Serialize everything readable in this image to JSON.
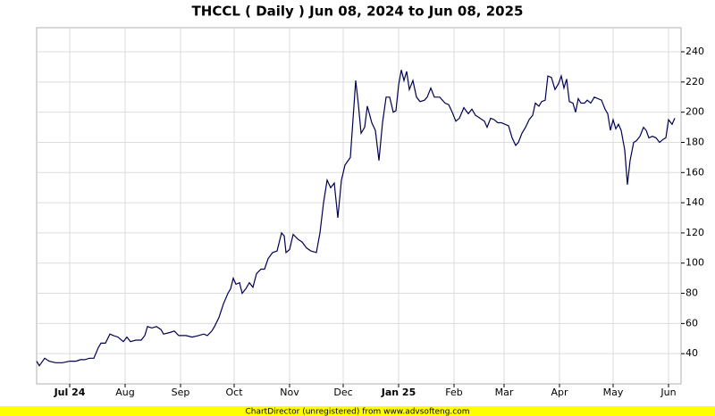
{
  "chart_data": {
    "type": "line",
    "title": "THCCL ( Daily ) Jun 08, 2024 to Jun 08, 2025",
    "footer": "ChartDirector (unregistered) from www.advsofteng.com",
    "x": [
      4.5,
      6,
      9,
      11.5,
      15,
      19,
      23,
      26.5,
      29,
      31.5,
      34,
      36.5,
      39,
      40.5,
      43,
      45.5,
      47.5,
      50,
      53,
      55,
      57,
      60,
      63,
      65,
      66.5,
      69,
      71.5,
      74,
      75.5,
      79,
      81.5,
      84,
      88,
      91.5,
      95,
      98,
      100,
      102.5,
      104,
      106.5,
      109,
      111.5,
      113,
      114.5,
      116,
      118,
      119.5,
      121.5,
      123.5,
      125.5,
      127.5,
      130,
      132,
      134,
      136.5,
      139,
      141.5,
      143,
      144,
      146,
      148,
      150.5,
      153,
      155.5,
      158,
      161,
      163,
      165,
      167,
      169,
      171,
      173,
      175,
      177,
      180,
      183,
      184.5,
      186,
      188,
      189.5,
      192,
      194,
      196,
      198,
      200,
      202,
      204,
      205.5,
      207,
      208.5,
      210,
      211.5,
      213,
      215,
      217,
      219,
      221.5,
      223,
      225,
      227,
      230,
      233,
      235,
      237,
      239,
      241,
      243.5,
      246,
      248,
      250,
      252.5,
      255,
      256.5,
      258.5,
      260.5,
      262.5,
      264.5,
      266.5,
      268.5,
      270.5,
      272.5,
      274,
      276,
      278,
      280,
      282,
      283.5,
      285.5,
      287,
      289,
      290.5,
      292.5,
      294.5,
      296.5,
      298,
      299.5,
      301,
      302.5,
      304.5,
      306,
      307.5,
      309,
      311,
      312.5,
      314.5,
      316.5,
      318.5,
      320.5,
      322.5,
      324,
      325.5,
      327,
      328.5,
      330,
      331.5,
      333.5,
      335,
      336.5,
      338.5,
      340,
      342,
      344,
      345.5,
      347,
      349,
      351,
      353,
      355,
      356.5,
      358,
      360,
      361.5
    ],
    "series": [
      {
        "color": "#000050",
        "values": [
          35,
          32,
          37,
          35,
          34,
          34,
          35,
          35,
          36,
          36,
          37,
          37,
          44,
          47,
          47,
          53,
          52,
          51,
          48,
          51,
          48,
          49,
          49,
          52,
          58,
          57,
          58,
          56,
          53,
          54,
          55,
          52,
          52,
          51,
          52,
          53,
          52,
          55,
          58,
          64,
          73,
          80,
          83,
          90,
          86,
          87,
          80,
          83,
          87,
          84,
          93,
          96,
          96,
          103,
          107,
          108,
          120,
          118,
          107,
          109,
          119,
          116,
          114,
          110,
          108,
          107,
          120,
          140,
          155,
          150,
          153,
          130,
          155,
          165,
          170,
          221,
          205,
          186,
          190,
          204,
          193,
          188,
          168,
          193,
          210,
          210,
          200,
          201,
          218,
          228,
          221,
          227,
          215,
          221,
          210,
          207,
          208,
          210,
          216,
          210,
          210,
          206,
          205,
          200,
          194,
          196,
          203,
          199,
          202,
          198,
          196,
          194,
          190,
          196,
          195,
          193,
          193,
          192,
          191,
          183,
          178,
          180,
          186,
          190,
          195,
          198,
          206,
          204,
          207,
          208,
          224,
          223,
          215,
          219,
          224,
          216,
          222,
          207,
          206,
          200,
          209,
          206,
          206,
          208,
          206,
          210,
          209,
          208,
          202,
          199,
          188,
          195,
          189,
          192,
          188,
          175,
          152,
          168,
          180,
          181,
          184,
          190,
          188,
          183,
          184,
          183,
          180,
          182,
          183,
          195,
          192,
          196
        ]
      }
    ],
    "xlim": [
      4.5,
      365
    ],
    "xticks": [
      {
        "value": 23,
        "label": "Jul 24",
        "bold": true
      },
      {
        "value": 54,
        "label": "Aug"
      },
      {
        "value": 85,
        "label": "Sep"
      },
      {
        "value": 115,
        "label": "Oct"
      },
      {
        "value": 146,
        "label": "Nov"
      },
      {
        "value": 176,
        "label": "Dec"
      },
      {
        "value": 207,
        "label": "Jan 25",
        "bold": true
      },
      {
        "value": 238,
        "label": "Feb"
      },
      {
        "value": 266,
        "label": "Mar"
      },
      {
        "value": 297,
        "label": "Apr"
      },
      {
        "value": 327,
        "label": "May"
      },
      {
        "value": 358,
        "label": "Jun"
      }
    ],
    "ylim": [
      20,
      256
    ],
    "yticks": [
      40,
      60,
      80,
      100,
      120,
      140,
      160,
      180,
      200,
      220,
      240
    ],
    "grid": true
  }
}
